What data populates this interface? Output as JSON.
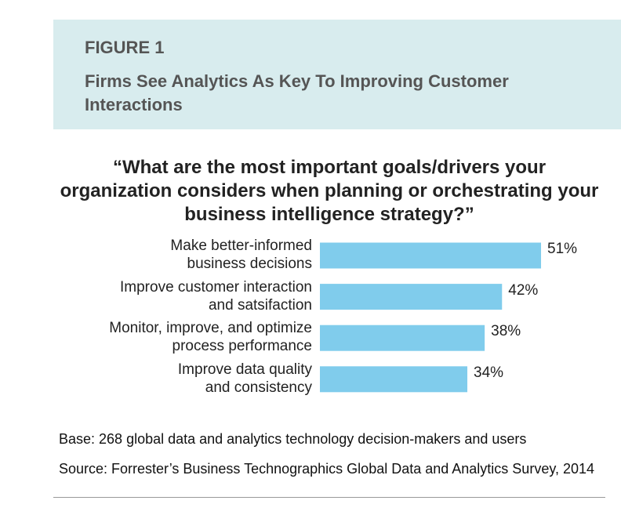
{
  "chart_data": {
    "type": "bar",
    "figure_label": "FIGURE 1",
    "title": "Firms See Analytics As Key To Improving Customer Interactions",
    "subtitle": "“What are the most important goals/drivers your organization considers when planning or orchestrating your business intelligence strategy?”",
    "categories": [
      "Make better-informed\nbusiness decisions",
      "Improve customer interaction\nand satsifaction",
      "Monitor, improve, and optimize\nprocess performance",
      "Improve data quality\nand consistency"
    ],
    "values": [
      51,
      42,
      38,
      34
    ],
    "value_labels": [
      "51%",
      "42%",
      "38%",
      "34%"
    ],
    "color": "#80ccec",
    "base": "Base: 268 global data and analytics technology decision-makers and users",
    "source": "Source: Forrester’s Business Technographics Global Data and Analytics Survey, 2014"
  }
}
